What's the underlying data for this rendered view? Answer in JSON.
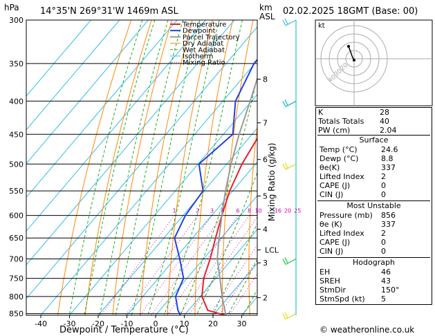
{
  "header": {
    "hpa_label": "hPa",
    "location": "14°35'N  269°31'W  1469m  ASL",
    "km_label": "km",
    "asl_label": "ASL",
    "datetime": "02.02.2025  18GMT  (Base: 00)"
  },
  "footer": {
    "copyright": "© weatheronline.co.uk"
  },
  "colors": {
    "temperature": "#e8202a",
    "dewpoint": "#2040e0",
    "parcel": "#999999",
    "dry_adiabat": "#ff8800",
    "wet_adiabat": "#22aa22",
    "isotherm": "#33bbee",
    "mixing_ratio": "#cc00aa",
    "wind": "#00bbbb",
    "wind_low": "#dddd00",
    "wind_mid": "#22cc44"
  },
  "chart_data": {
    "type": "line",
    "xlabel": "Dewpoint / Temperature (°C)",
    "ylabel": "Mixing Ratio (g/kg)",
    "xlim": [
      -45,
      35
    ],
    "ylim_hpa": [
      300,
      855
    ],
    "x_ticks": [
      "-40",
      "-30",
      "-20",
      "-10",
      "0",
      "10",
      "20",
      "30"
    ],
    "pressure_levels": [
      "300",
      "350",
      "400",
      "450",
      "500",
      "550",
      "600",
      "650",
      "700",
      "750",
      "800",
      "850"
    ],
    "km_ticks": [
      {
        "label": "8",
        "p": 370
      },
      {
        "label": "7",
        "p": 432
      },
      {
        "label": "6",
        "p": 492
      },
      {
        "label": "5",
        "p": 560
      },
      {
        "label": "4",
        "p": 630
      },
      {
        "label": "LCL",
        "p": 678
      },
      {
        "label": "3",
        "p": 710
      },
      {
        "label": "2",
        "p": 803
      }
    ],
    "mixing_ratio_labels": [
      "1",
      "2",
      "3",
      "4",
      "6",
      "8",
      "10",
      "16",
      "20",
      "25"
    ],
    "legend": [
      "Temperature",
      "Dewpoint",
      "Parcel Trajectory",
      "Dry Adiabat",
      "Wet Adiabat",
      "Isotherm",
      "Mixing Ratio"
    ],
    "series": [
      {
        "name": "Temperature",
        "points": [
          [
            -22.3,
            300
          ],
          [
            -19.8,
            350
          ],
          [
            -19.3,
            400
          ],
          [
            -17.3,
            450
          ],
          [
            -14.7,
            500
          ],
          [
            -11.0,
            550
          ],
          [
            -6.5,
            600
          ],
          [
            -2.0,
            650
          ],
          [
            2.3,
            700
          ],
          [
            5.8,
            750
          ],
          [
            10.6,
            800
          ],
          [
            16.7,
            840
          ],
          [
            24.6,
            856
          ]
        ]
      },
      {
        "name": "Dewpoint",
        "points": [
          [
            -40.6,
            300
          ],
          [
            -40.3,
            350
          ],
          [
            -35.6,
            400
          ],
          [
            -26.7,
            450
          ],
          [
            -29.7,
            500
          ],
          [
            -20.3,
            550
          ],
          [
            -19.2,
            600
          ],
          [
            -16.3,
            650
          ],
          [
            -8.3,
            700
          ],
          [
            -1.2,
            750
          ],
          [
            1.4,
            800
          ],
          [
            6.3,
            840
          ],
          [
            8.8,
            856
          ]
        ]
      },
      {
        "name": "Parcel Trajectory",
        "points": [
          [
            24.6,
            856
          ],
          [
            17.6,
            800
          ],
          [
            11.5,
            750
          ],
          [
            4.8,
            700
          ],
          [
            -0.8,
            650
          ],
          [
            -6.5,
            600
          ],
          [
            -12.5,
            550
          ],
          [
            -18.5,
            500
          ],
          [
            -24.5,
            450
          ],
          [
            -30.5,
            400
          ],
          [
            -37.5,
            350
          ],
          [
            -45.0,
            300
          ]
        ]
      }
    ],
    "hodograph": {
      "label": "kt",
      "ring_labels": [
        "20",
        "30",
        "40"
      ]
    },
    "wind_barbs": [
      {
        "p": 300,
        "color": "#33bbee"
      },
      {
        "p": 400,
        "color": "#00bbbb"
      },
      {
        "p": 500,
        "color": "#dddd00"
      },
      {
        "p": 700,
        "color": "#22cc44"
      },
      {
        "p": 850,
        "color": "#dddd00"
      }
    ]
  },
  "indices_table": {
    "rows": [
      {
        "key": "K",
        "value": "28"
      },
      {
        "key": "Totals Totals",
        "value": "40"
      },
      {
        "key": "PW (cm)",
        "value": "2.04"
      }
    ]
  },
  "surface": {
    "title": "Surface",
    "rows": [
      {
        "key": "Temp (°C)",
        "value": "24.6"
      },
      {
        "key": "Dewp (°C)",
        "value": "8.8"
      },
      {
        "key": "θe(K)",
        "value": "337"
      },
      {
        "key": "Lifted Index",
        "value": "2"
      },
      {
        "key": "CAPE (J)",
        "value": "0"
      },
      {
        "key": "CIN (J)",
        "value": "0"
      }
    ]
  },
  "most_unstable": {
    "title": "Most Unstable",
    "rows": [
      {
        "key": "Pressure (mb)",
        "value": "856"
      },
      {
        "key": "θe (K)",
        "value": "337"
      },
      {
        "key": "Lifted Index",
        "value": "2"
      },
      {
        "key": "CAPE (J)",
        "value": "0"
      },
      {
        "key": "CIN (J)",
        "value": "0"
      }
    ]
  },
  "hodograph_table": {
    "title": "Hodograph",
    "rows": [
      {
        "key": "EH",
        "value": "46"
      },
      {
        "key": "SREH",
        "value": "43"
      },
      {
        "key": "StmDir",
        "value": "150°"
      },
      {
        "key": "StmSpd (kt)",
        "value": "5"
      }
    ]
  }
}
